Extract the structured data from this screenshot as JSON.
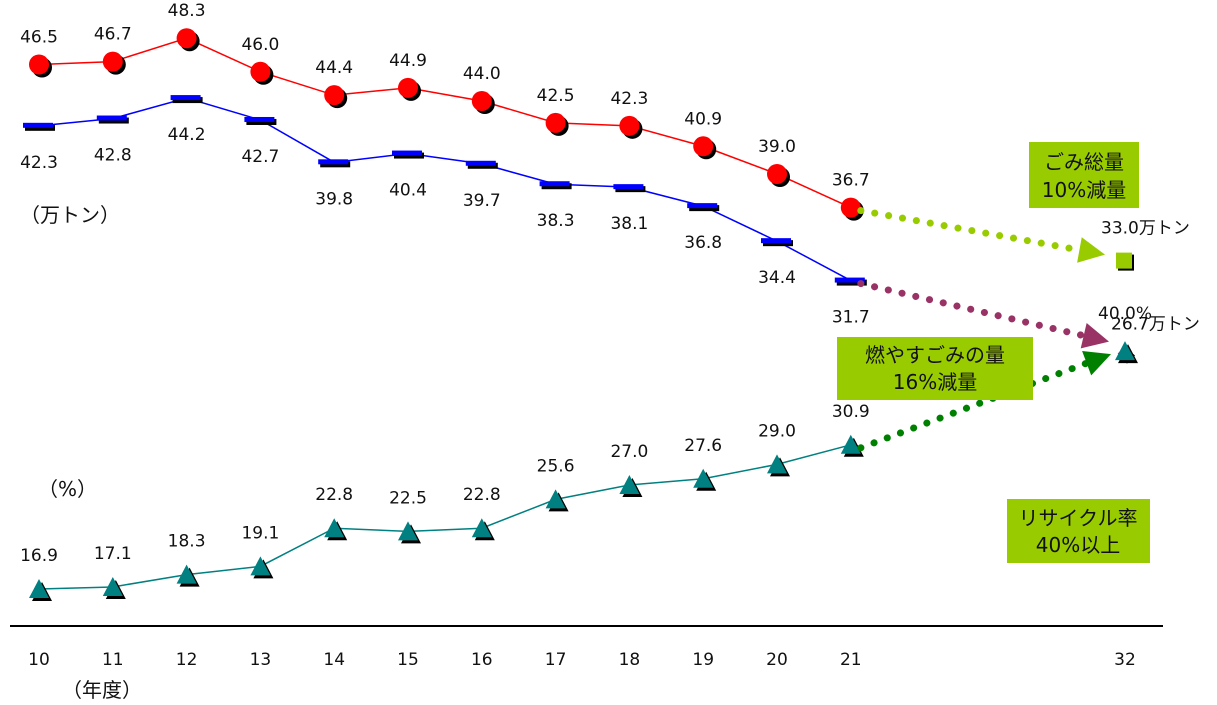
{
  "chart_data": {
    "type": "line",
    "x": [
      "10",
      "11",
      "12",
      "13",
      "14",
      "15",
      "16",
      "17",
      "18",
      "19",
      "20",
      "21"
    ],
    "target_x": "32",
    "xlabel": "（年度）",
    "left_unit_tons": "（万トン）",
    "left_unit_percent": "（%）",
    "series": [
      {
        "key": "total",
        "color": "#ff0000",
        "marker": "circle",
        "values": [
          46.5,
          46.7,
          48.3,
          46.0,
          44.4,
          44.9,
          44.0,
          42.5,
          42.3,
          40.9,
          39.0,
          36.7
        ],
        "labels": [
          "46.5",
          "46.7",
          "48.3",
          "46.0",
          "44.4",
          "44.9",
          "44.0",
          "42.5",
          "42.3",
          "40.9",
          "39.0",
          "36.7"
        ],
        "target": 33.0,
        "target_label": "33.0万トン",
        "target_color": "#99cc00",
        "target_marker": "square",
        "arrow_color": "#99cc00",
        "box_lines": [
          "ごみ総量",
          "10%減量"
        ]
      },
      {
        "key": "burnable",
        "color": "#0000ff",
        "marker": "dash",
        "values": [
          42.3,
          42.8,
          44.2,
          42.7,
          39.8,
          40.4,
          39.7,
          38.3,
          38.1,
          36.8,
          34.4,
          31.7
        ],
        "labels": [
          "42.3",
          "42.8",
          "44.2",
          "42.7",
          "39.8",
          "40.4",
          "39.7",
          "38.3",
          "38.1",
          "36.8",
          "34.4",
          "31.7"
        ],
        "target": 26.7,
        "target_label": "26.7万トン",
        "target_color": "#993399",
        "target_marker": "diamond",
        "arrow_color": "#993366",
        "box_lines": [
          "燃やすごみの量",
          "16%減量"
        ]
      },
      {
        "key": "recycle",
        "color": "#008080",
        "marker": "triangle",
        "values": [
          16.9,
          17.1,
          18.3,
          19.1,
          22.8,
          22.5,
          22.8,
          25.6,
          27.0,
          27.6,
          29.0,
          30.9
        ],
        "labels": [
          "16.9",
          "17.1",
          "18.3",
          "19.1",
          "22.8",
          "22.5",
          "22.8",
          "25.6",
          "27.0",
          "27.6",
          "29.0",
          "30.9"
        ],
        "target": 40.0,
        "target_label": "40.0%",
        "target_color": "#008080",
        "target_marker": "triangle",
        "arrow_color": "#008000",
        "box_lines": [
          "リサイクル率",
          "40%以上"
        ]
      }
    ],
    "box_color": "#99cc00",
    "grid": false
  }
}
